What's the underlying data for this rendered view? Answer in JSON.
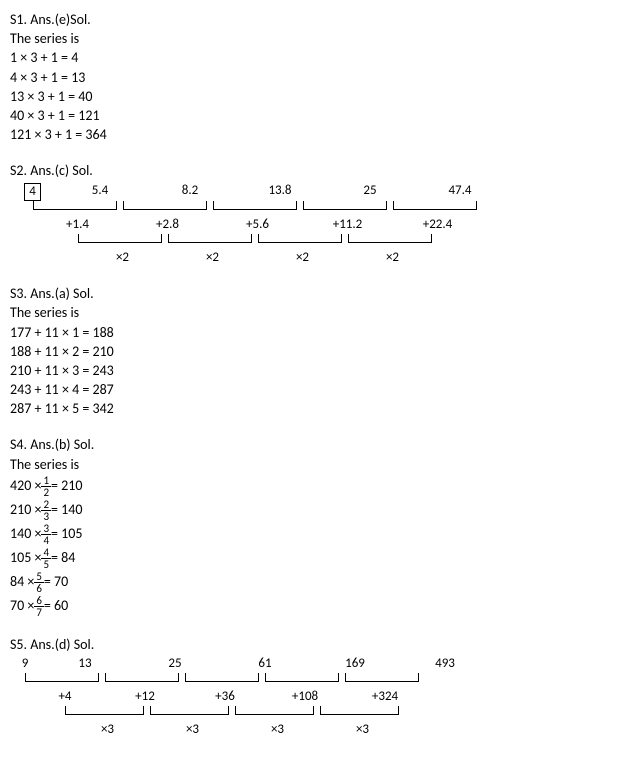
{
  "s1": {
    "header": "S1. Ans.(e)Sol.",
    "intro": "The series is",
    "lines": [
      "1 × 3 + 1 = 4",
      "4 × 3 + 1 = 13",
      "13 × 3 + 1 = 40",
      "40 × 3 + 1 = 121",
      "121 × 3 + 1 = 364"
    ]
  },
  "s2": {
    "header": "S2. Ans.(c) Sol.",
    "top_values": [
      "4",
      "5.4",
      "8.2",
      "13.8",
      "25",
      "47.4"
    ],
    "top_boxed_index": 0,
    "diffs": [
      "+1.4",
      "+2.8",
      "+5.6",
      "+11.2",
      "+22.4"
    ],
    "mults": [
      "×2",
      "×2",
      "×2",
      "×2"
    ],
    "top_widths": [
      45,
      90,
      90,
      90,
      90,
      90
    ],
    "diff_offsets": [
      0,
      90,
      180,
      270,
      360
    ],
    "diff_width": 90,
    "mult_offsets": [
      45,
      135,
      225,
      315
    ],
    "mult_width": 90
  },
  "s3": {
    "header": "S3. Ans.(a) Sol.",
    "intro": "The series is",
    "lines": [
      "177 + 11 × 1 = 188",
      "188 + 11 × 2 = 210",
      "210 + 11 × 3 = 243",
      "243 + 11 × 4 = 287",
      "287 + 11 × 5 = 342"
    ]
  },
  "s4": {
    "header": "S4. Ans.(b) Sol.",
    "intro": "The series is",
    "equations": [
      {
        "lhs": "420 ×",
        "num": "1",
        "den": "2",
        "rhs": " = 210"
      },
      {
        "lhs": "210 ×",
        "num": "2",
        "den": "3",
        "rhs": " = 140"
      },
      {
        "lhs": "140 ×",
        "num": "3",
        "den": "4",
        "rhs": " = 105"
      },
      {
        "lhs": "105 ×",
        "num": "4",
        "den": "5",
        "rhs": " = 84"
      },
      {
        "lhs": "84 ×",
        "num": "5",
        "den": "6",
        "rhs": " = 70"
      },
      {
        "lhs": "70 ×",
        "num": "6",
        "den": "7",
        "rhs": " = 60"
      }
    ]
  },
  "s5": {
    "header": "S5. Ans.(d) Sol.",
    "top_values": [
      "9",
      "13",
      "25",
      "61",
      "169",
      "493"
    ],
    "top_boxed_index": -1,
    "diffs": [
      "+4",
      "+12",
      "+36",
      "+108",
      "+324"
    ],
    "mults": [
      "×3",
      "×3",
      "×3",
      "×3"
    ],
    "top_widths": [
      30,
      90,
      90,
      90,
      90,
      90
    ],
    "diff_offsets": [
      0,
      80,
      170,
      260,
      350
    ],
    "diff_width": 80,
    "mult_offsets": [
      40,
      125,
      215,
      305
    ],
    "mult_width": 85
  }
}
